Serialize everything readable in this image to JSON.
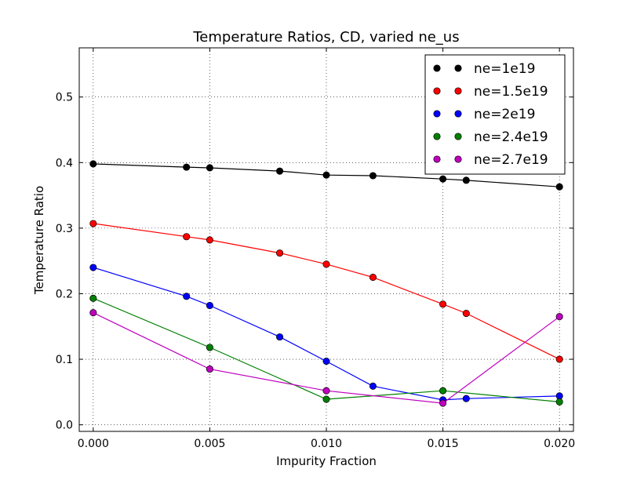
{
  "chart_data": {
    "type": "line",
    "title": "Temperature Ratios, CD, varied ne_us",
    "xlabel": "Impurity Fraction",
    "ylabel": "Temperature Ratio",
    "xlim": [
      -0.0006,
      0.0206
    ],
    "ylim": [
      -0.01,
      0.575
    ],
    "xticks": [
      0.0,
      0.005,
      0.01,
      0.015,
      0.02
    ],
    "xtick_labels": [
      "0.000",
      "0.005",
      "0.010",
      "0.015",
      "0.020"
    ],
    "yticks": [
      0.0,
      0.1,
      0.2,
      0.3,
      0.4,
      0.5
    ],
    "ytick_labels": [
      "0.0",
      "0.1",
      "0.2",
      "0.3",
      "0.4",
      "0.5"
    ],
    "grid": true,
    "legend_position": "top-right",
    "series": [
      {
        "name": "ne=1e19",
        "color": "#000000",
        "x": [
          0.0,
          0.004,
          0.005,
          0.008,
          0.01,
          0.012,
          0.015,
          0.016,
          0.02
        ],
        "y": [
          0.398,
          0.393,
          0.392,
          0.387,
          0.381,
          0.38,
          0.375,
          0.373,
          0.363
        ]
      },
      {
        "name": "ne=1.5e19",
        "color": "#ff0000",
        "x": [
          0.0,
          0.004,
          0.005,
          0.008,
          0.01,
          0.012,
          0.015,
          0.016,
          0.02
        ],
        "y": [
          0.307,
          0.287,
          0.282,
          0.262,
          0.245,
          0.225,
          0.184,
          0.17,
          0.1
        ]
      },
      {
        "name": "ne=2e19",
        "color": "#0000ff",
        "x": [
          0.0,
          0.004,
          0.005,
          0.008,
          0.01,
          0.012,
          0.015,
          0.016,
          0.02
        ],
        "y": [
          0.24,
          0.196,
          0.182,
          0.134,
          0.097,
          0.059,
          0.038,
          0.04,
          0.044
        ]
      },
      {
        "name": "ne=2.4e19",
        "color": "#008000",
        "x": [
          0.0,
          0.005,
          0.01,
          0.015,
          0.02
        ],
        "y": [
          0.193,
          0.118,
          0.039,
          0.052,
          0.035
        ]
      },
      {
        "name": "ne=2.7e19",
        "color": "#bf00bf",
        "x": [
          0.0,
          0.005,
          0.01,
          0.015,
          0.02
        ],
        "y": [
          0.171,
          0.085,
          0.052,
          0.033,
          0.165
        ]
      }
    ]
  }
}
